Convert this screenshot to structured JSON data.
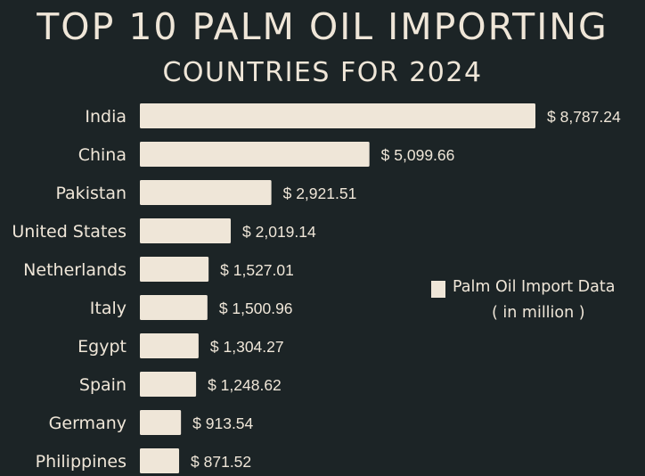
{
  "chart_data": {
    "type": "bar",
    "orientation": "horizontal",
    "title": "TOP 10 PALM OIL IMPORTING",
    "subtitle": "COUNTRIES FOR 2024",
    "categories": [
      "India",
      "China",
      "Pakistan",
      "United States",
      "Netherlands",
      "Italy",
      "Egypt",
      "Spain",
      "Germany",
      "Philippines"
    ],
    "series": [
      {
        "name": "Palm Oil Import Data",
        "values": [
          8787.24,
          5099.66,
          2921.51,
          2019.14,
          1527.01,
          1500.96,
          1304.27,
          1248.62,
          913.54,
          871.52
        ]
      }
    ],
    "data_labels": [
      "$ 8,787.24",
      "$ 5,099.66",
      "$ 2,921.51",
      "$ 2,019.14",
      "$ 1,527.01",
      "$ 1,500.96",
      "$ 1,304.27",
      "$ 1,248.62",
      "$ 913.54",
      "$ 871.52"
    ],
    "xlim": [
      0,
      8787.24
    ],
    "grid": false,
    "legend": {
      "position": "right",
      "label": "Palm Oil Import Data",
      "sublabel": "( in million )"
    },
    "colors": {
      "background": "#1c2426",
      "bar": "#efe6d8",
      "text": "#efe6d8"
    }
  }
}
